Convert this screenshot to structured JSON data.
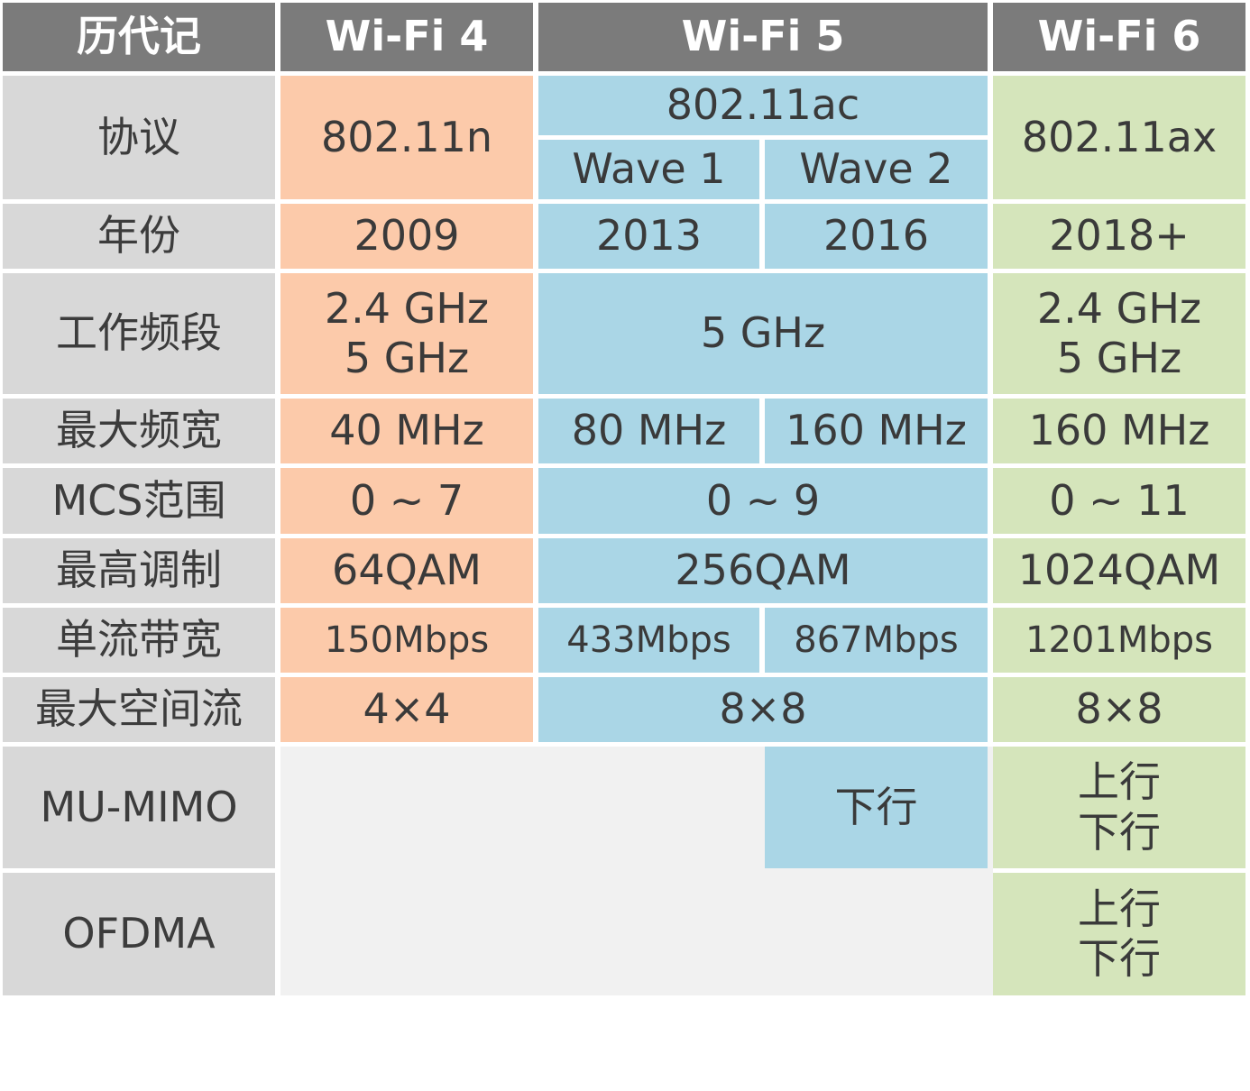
{
  "headers": {
    "c0": "历代记",
    "c1": "Wi-Fi 4",
    "c2": "Wi-Fi 5",
    "c3": "Wi-Fi 6"
  },
  "rows": {
    "protocol": {
      "label": "协议",
      "wifi4": "802.11n",
      "wifi5": "802.11ac",
      "wave1": "Wave 1",
      "wave2": "Wave 2",
      "wifi6": "802.11ax"
    },
    "year": {
      "label": "年份",
      "wifi4": "2009",
      "wave1": "2013",
      "wave2": "2016",
      "wifi6": "2018+"
    },
    "band": {
      "label": "工作频段",
      "wifi4_l1": "2.4 GHz",
      "wifi4_l2": "5 GHz",
      "wifi5": "5 GHz",
      "wifi6_l1": "2.4 GHz",
      "wifi6_l2": "5 GHz"
    },
    "bandwidth": {
      "label": "最大频宽",
      "wifi4": "40 MHz",
      "wave1": "80 MHz",
      "wave2": "160 MHz",
      "wifi6": "160 MHz"
    },
    "mcs": {
      "label": "MCS范围",
      "wifi4": "0 ~ 7",
      "wifi5": "0 ~ 9",
      "wifi6": "0 ~ 11"
    },
    "modulation": {
      "label": "最高调制",
      "wifi4": "64QAM",
      "wifi5": "256QAM",
      "wifi6": "1024QAM"
    },
    "single_stream": {
      "label": "单流带宽",
      "wifi4": "150Mbps",
      "wave1": "433Mbps",
      "wave2": "867Mbps",
      "wifi6": "1201Mbps"
    },
    "spatial": {
      "label": "最大空间流",
      "wifi4": "4×4",
      "wifi5": "8×8",
      "wifi6": "8×8"
    },
    "mumimo": {
      "label": "MU-MIMO",
      "wave2": "下行",
      "wifi6_l1": "上行",
      "wifi6_l2": "下行"
    },
    "ofdma": {
      "label": "OFDMA",
      "wifi6_l1": "上行",
      "wifi6_l2": "下行"
    }
  }
}
